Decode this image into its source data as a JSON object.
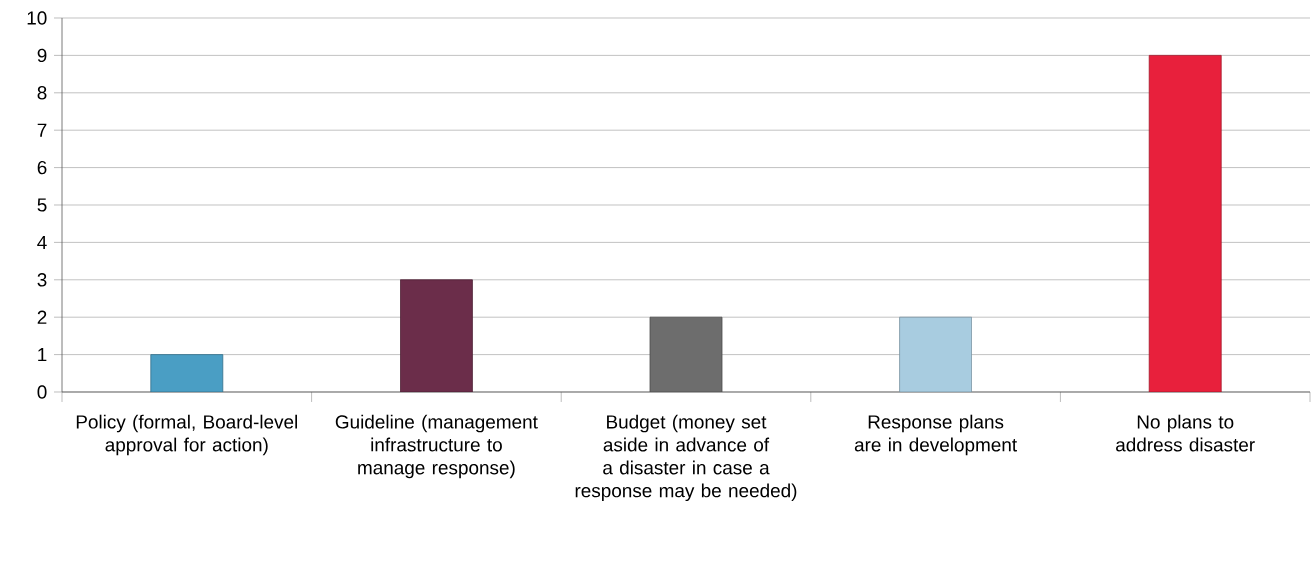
{
  "chart_data": {
    "type": "bar",
    "categories": [
      "Policy (formal, Board-level approval for action)",
      "Guideline (management infrastructure to manage response)",
      "Budget (money set aside in advance of a disaster in case a response may be needed)",
      "Response plans are in development",
      "No plans to address disaster"
    ],
    "values": [
      1,
      3,
      2,
      2,
      9
    ],
    "colors": [
      "#4a9ec4",
      "#6b2d4a",
      "#6d6d6d",
      "#a8cce0",
      "#e8203c"
    ],
    "ylim": [
      0,
      10
    ],
    "yticks": [
      0,
      1,
      2,
      3,
      4,
      5,
      6,
      7,
      8,
      9,
      10
    ],
    "grid": "y"
  }
}
